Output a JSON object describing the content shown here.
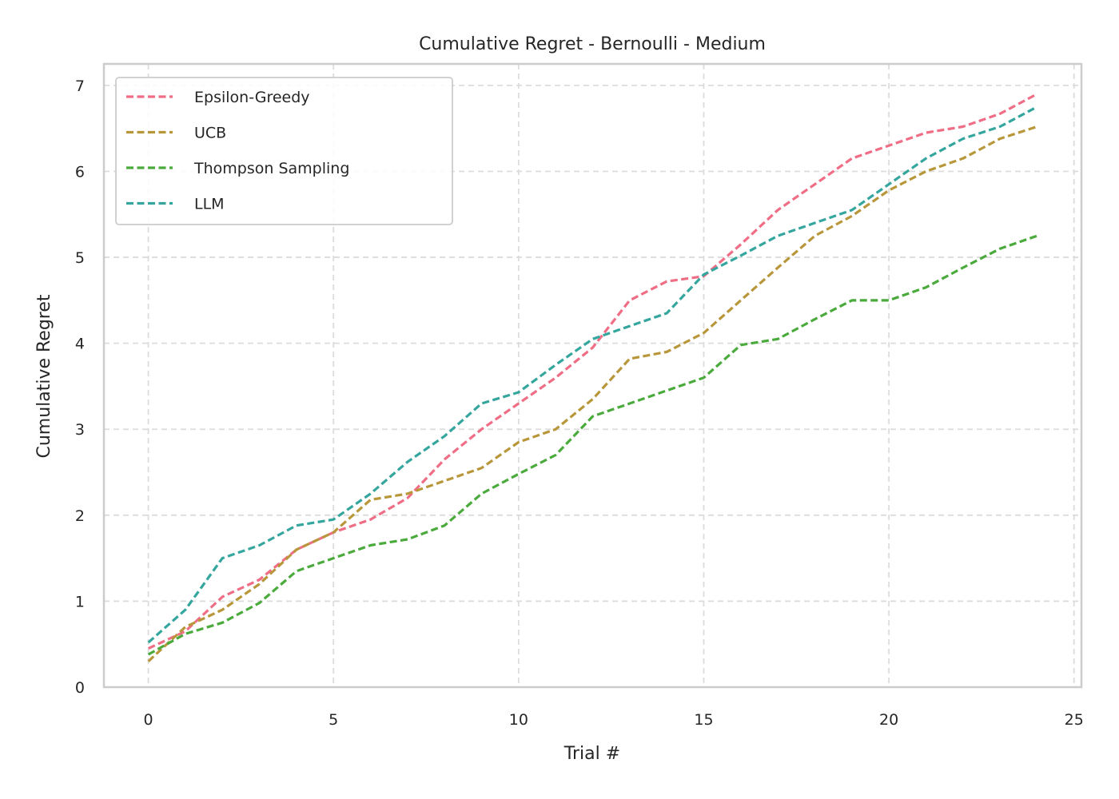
{
  "chart_data": {
    "type": "line",
    "title": "Cumulative Regret - Bernoulli - Medium",
    "xlabel": "Trial #",
    "ylabel": "Cumulative Regret",
    "xlim": [
      -1.2,
      25.2
    ],
    "ylim": [
      0,
      7.25
    ],
    "xticks": [
      0,
      5,
      10,
      15,
      20,
      25
    ],
    "yticks": [
      0,
      1,
      2,
      3,
      4,
      5,
      6,
      7
    ],
    "grid": true,
    "legend_position": "upper-left",
    "line_style": "dashed",
    "x": [
      0,
      1,
      2,
      3,
      4,
      5,
      6,
      7,
      8,
      9,
      10,
      11,
      12,
      13,
      14,
      15,
      16,
      17,
      18,
      19,
      20,
      21,
      22,
      23,
      24
    ],
    "series": [
      {
        "name": "Epsilon-Greedy",
        "color": "#f06d86",
        "values": [
          0.45,
          0.65,
          1.05,
          1.25,
          1.6,
          1.8,
          1.95,
          2.2,
          2.65,
          3.0,
          3.3,
          3.6,
          3.95,
          4.5,
          4.72,
          4.78,
          5.15,
          5.55,
          5.85,
          6.15,
          6.3,
          6.45,
          6.52,
          6.67,
          6.9
        ]
      },
      {
        "name": "UCB",
        "color": "#b8963a",
        "values": [
          0.3,
          0.7,
          0.9,
          1.2,
          1.6,
          1.8,
          2.18,
          2.25,
          2.4,
          2.55,
          2.85,
          3.0,
          3.35,
          3.82,
          3.9,
          4.12,
          4.5,
          4.88,
          5.25,
          5.48,
          5.78,
          6.0,
          6.15,
          6.38,
          6.52
        ]
      },
      {
        "name": "Thompson Sampling",
        "color": "#4aaa3c",
        "values": [
          0.38,
          0.62,
          0.75,
          0.98,
          1.35,
          1.5,
          1.65,
          1.72,
          1.88,
          2.25,
          2.48,
          2.7,
          3.15,
          3.3,
          3.45,
          3.6,
          3.98,
          4.05,
          4.28,
          4.5,
          4.5,
          4.65,
          4.88,
          5.1,
          5.25
        ]
      },
      {
        "name": "LLM",
        "color": "#35a69e",
        "values": [
          0.52,
          0.9,
          1.5,
          1.65,
          1.88,
          1.95,
          2.25,
          2.62,
          2.92,
          3.3,
          3.43,
          3.75,
          4.05,
          4.2,
          4.35,
          4.8,
          5.02,
          5.25,
          5.4,
          5.55,
          5.85,
          6.15,
          6.38,
          6.52,
          6.75
        ]
      }
    ]
  }
}
